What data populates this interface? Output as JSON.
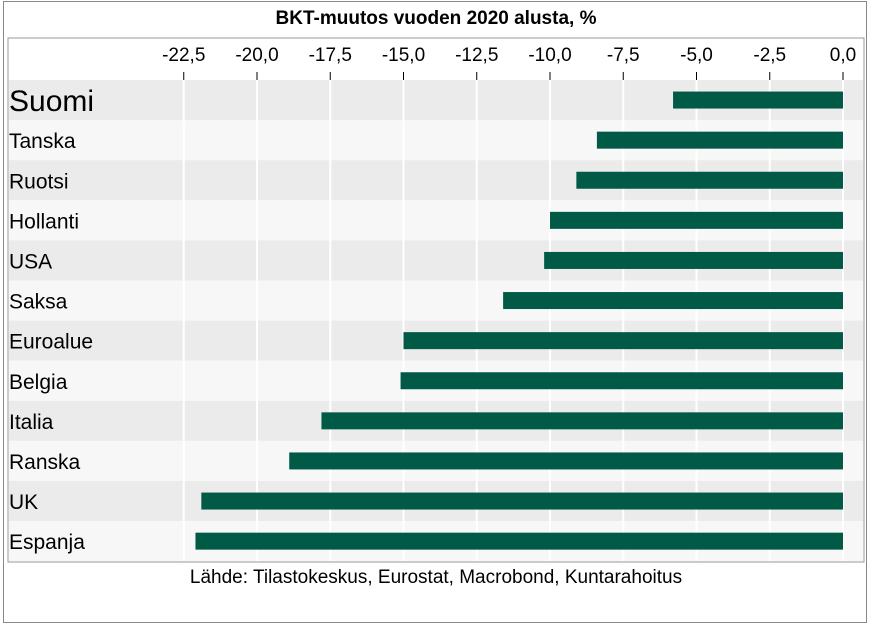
{
  "chart_data": {
    "type": "bar",
    "orientation": "horizontal",
    "title": "BKT-muutos vuoden 2020 alusta, %",
    "source": "Lähde: Tilastokeskus, Eurostat, Macrobond, Kuntarahoitus",
    "xlim": [
      -23.5,
      0.0
    ],
    "x_ticks": [
      -22.5,
      -20.0,
      -17.5,
      -15.0,
      -12.5,
      -10.0,
      -7.5,
      -5.0,
      -2.5,
      0.0
    ],
    "x_tick_labels": [
      "-22,5",
      "-20,0",
      "-17,5",
      "-15,0",
      "-12,5",
      "-10,0",
      "-7,5",
      "-5,0",
      "-2,5",
      "0,0"
    ],
    "axis_position": "top",
    "grid": true,
    "categories": [
      "Suomi",
      "Tanska",
      "Ruotsi",
      "Hollanti",
      "USA",
      "Saksa",
      "Euroalue",
      "Belgia",
      "Italia",
      "Ranska",
      "UK",
      "Espanja"
    ],
    "highlight": "Suomi",
    "values": [
      -5.8,
      -8.4,
      -9.1,
      -10.0,
      -10.2,
      -11.6,
      -15.0,
      -15.1,
      -17.8,
      -18.9,
      -21.9,
      -22.1
    ],
    "bar_color": "#005a46"
  }
}
